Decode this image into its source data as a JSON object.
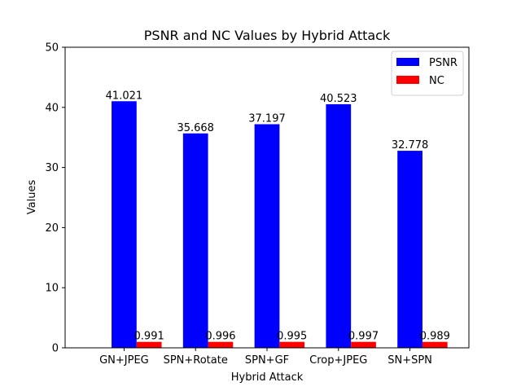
{
  "chart_data": {
    "type": "bar",
    "title": "PSNR and NC Values by Hybrid Attack",
    "xlabel": "Hybrid Attack",
    "ylabel": "Values",
    "ylim": [
      0,
      50
    ],
    "yticks": [
      0,
      10,
      20,
      30,
      40,
      50
    ],
    "categories": [
      "GN+JPEG",
      "SPN+Rotate",
      "SPN+GF",
      "Crop+JPEG",
      "SN+SPN"
    ],
    "series": [
      {
        "name": "PSNR",
        "color": "#0000ff",
        "values": [
          41.021,
          35.668,
          37.197,
          40.523,
          32.778
        ]
      },
      {
        "name": "NC",
        "color": "#ff0000",
        "values": [
          0.991,
          0.996,
          0.995,
          0.997,
          0.989
        ]
      }
    ],
    "legend_position": "top-right",
    "grid": false
  }
}
